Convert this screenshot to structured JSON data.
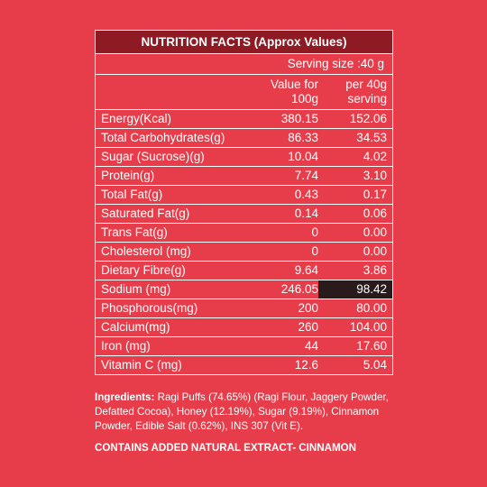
{
  "table": {
    "title": "NUTRITION FACTS (Approx Values)",
    "serving_size": "Serving size :40 g",
    "col2_header": "Value for 100g",
    "col3_header": "per 40g serving",
    "rows": [
      {
        "name": "Energy(Kcal)",
        "per100": "380.15",
        "per40": "152.06"
      },
      {
        "name": "Total Carbohydrates(g)",
        "per100": "86.33",
        "per40": "34.53"
      },
      {
        "name": "Sugar (Sucrose)(g)",
        "per100": "10.04",
        "per40": "4.02"
      },
      {
        "name": "Protein(g)",
        "per100": "7.74",
        "per40": "3.10"
      },
      {
        "name": "Total Fat(g)",
        "per100": "0.43",
        "per40": "0.17"
      },
      {
        "name": "Saturated Fat(g)",
        "per100": "0.14",
        "per40": "0.06"
      },
      {
        "name": "Trans Fat(g)",
        "per100": "0",
        "per40": "0.00"
      },
      {
        "name": "Cholesterol (mg)",
        "per100": "0",
        "per40": "0.00"
      },
      {
        "name": "Dietary Fibre(g)",
        "per100": "9.64",
        "per40": "3.86"
      },
      {
        "name": "Sodium (mg)",
        "per100": "246.05",
        "per40": "98.42"
      },
      {
        "name": "Phosphorous(mg)",
        "per100": "200",
        "per40": "80.00"
      },
      {
        "name": "Calcium(mg)",
        "per100": "260",
        "per40": "104.00"
      },
      {
        "name": "Iron (mg)",
        "per100": "44",
        "per40": "17.60"
      },
      {
        "name": "Vitamin C (mg)",
        "per100": "12.6",
        "per40": "5.04"
      }
    ]
  },
  "ingredients": {
    "label": "Ingredients:",
    "text": " Ragi Puffs (74.65%) (Ragi Flour, Jaggery Powder, Defatted Cocoa), Honey (12.19%), Sugar (9.19%), Cinnamon Powder, Edible Salt (0.62%), INS 307 (Vit E)."
  },
  "contains": "CONTAINS ADDED NATURAL EXTRACT- CINNAMON",
  "colors": {
    "background": "#e73c4a",
    "title_bar": "#8e1a24",
    "text": "#ffffff"
  }
}
